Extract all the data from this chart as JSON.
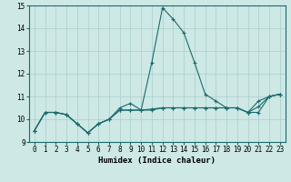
{
  "xlabel": "Humidex (Indice chaleur)",
  "xlim": [
    -0.5,
    23.5
  ],
  "ylim": [
    9,
    15
  ],
  "xticks": [
    0,
    1,
    2,
    3,
    4,
    5,
    6,
    7,
    8,
    9,
    10,
    11,
    12,
    13,
    14,
    15,
    16,
    17,
    18,
    19,
    20,
    21,
    22,
    23
  ],
  "yticks": [
    9,
    10,
    11,
    12,
    13,
    14,
    15
  ],
  "bg_color": "#cde8e5",
  "line_color": "#1a6b6b",
  "grid_color": "#aacfcc",
  "curves": [
    [
      9.5,
      10.3,
      10.3,
      10.2,
      9.8,
      9.4,
      9.8,
      10.0,
      10.5,
      10.7,
      10.4,
      12.5,
      14.9,
      14.4,
      13.8,
      12.5,
      11.1,
      10.8,
      10.5,
      10.5,
      10.3,
      10.8,
      11.0,
      11.1
    ],
    [
      9.5,
      10.3,
      10.3,
      10.2,
      9.8,
      9.4,
      9.8,
      10.0,
      10.4,
      10.4,
      10.4,
      10.4,
      10.5,
      10.5,
      10.5,
      10.5,
      10.5,
      10.5,
      10.5,
      10.5,
      10.3,
      10.3,
      11.0,
      11.1
    ],
    [
      9.5,
      10.3,
      10.3,
      10.2,
      9.8,
      9.4,
      9.8,
      10.0,
      10.4,
      10.4,
      10.4,
      10.45,
      10.5,
      10.5,
      10.5,
      10.5,
      10.5,
      10.5,
      10.5,
      10.5,
      10.3,
      10.55,
      11.0,
      11.1
    ]
  ]
}
